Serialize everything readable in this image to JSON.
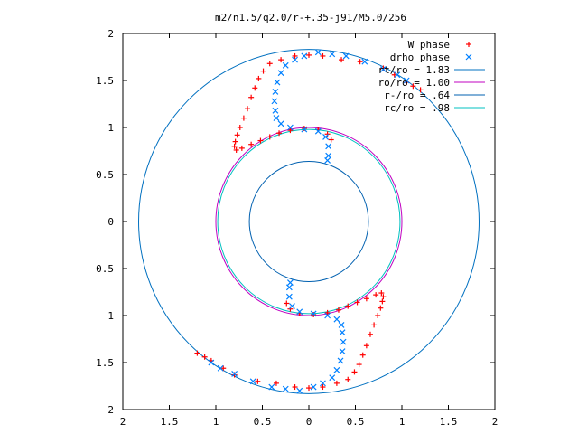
{
  "chart_data": {
    "type": "scatter",
    "title": "m2/n1.5/q2.0/r-+.35-j91/M5.0/256",
    "xlabel": "",
    "ylabel": "",
    "xlim": [
      -2,
      2
    ],
    "ylim": [
      -2,
      2
    ],
    "x_tick_values": [
      -2,
      -1.5,
      -1,
      -0.5,
      0,
      0.5,
      1,
      1.5,
      2
    ],
    "x_tick_labels": [
      "2",
      "1.5",
      "1",
      "0.5",
      "0",
      "0.5",
      "1",
      "1.5",
      "2"
    ],
    "y_tick_values": [
      2,
      1.5,
      1,
      0.5,
      0,
      -0.5,
      -1,
      -1.5,
      -2
    ],
    "y_tick_labels": [
      "2",
      "1.5",
      "1",
      "0.5",
      "0",
      "0.5",
      "1",
      "1.5",
      "2"
    ],
    "grid": false,
    "legend_position": "top-right",
    "series": [
      {
        "name": "W phase",
        "kind": "points",
        "marker": "plus",
        "color": "#ff0000",
        "points": [
          [
            -1.2,
            -1.4
          ],
          [
            -1.12,
            -1.44
          ],
          [
            -1.05,
            -1.48
          ],
          [
            -0.92,
            -1.56
          ],
          [
            -0.8,
            -1.63
          ],
          [
            -0.55,
            -1.7
          ],
          [
            -0.35,
            -1.72
          ],
          [
            -0.15,
            -1.76
          ],
          [
            0.0,
            -1.77
          ],
          [
            0.15,
            -1.76
          ],
          [
            0.3,
            -1.72
          ],
          [
            0.42,
            -1.68
          ],
          [
            0.49,
            -1.6
          ],
          [
            0.54,
            -1.52
          ],
          [
            0.58,
            -1.42
          ],
          [
            0.62,
            -1.32
          ],
          [
            0.66,
            -1.2
          ],
          [
            0.7,
            -1.1
          ],
          [
            0.74,
            -1.0
          ],
          [
            0.77,
            -0.92
          ],
          [
            0.79,
            -0.85
          ],
          [
            0.8,
            -0.8
          ],
          [
            0.78,
            -0.76
          ],
          [
            0.72,
            -0.78
          ],
          [
            0.62,
            -0.82
          ],
          [
            0.52,
            -0.86
          ],
          [
            0.42,
            -0.9
          ],
          [
            0.32,
            -0.94
          ],
          [
            0.2,
            -0.97
          ],
          [
            0.05,
            -0.99
          ],
          [
            -0.1,
            -0.98
          ],
          [
            -0.2,
            -0.93
          ],
          [
            -0.24,
            -0.87
          ],
          [
            1.2,
            1.4
          ],
          [
            1.12,
            1.44
          ],
          [
            1.05,
            1.48
          ],
          [
            0.92,
            1.56
          ],
          [
            0.8,
            1.63
          ],
          [
            0.55,
            1.7
          ],
          [
            0.35,
            1.72
          ],
          [
            0.15,
            1.76
          ],
          [
            0.0,
            1.77
          ],
          [
            -0.15,
            1.76
          ],
          [
            -0.3,
            1.72
          ],
          [
            -0.42,
            1.68
          ],
          [
            -0.49,
            1.6
          ],
          [
            -0.54,
            1.52
          ],
          [
            -0.58,
            1.42
          ],
          [
            -0.62,
            1.32
          ],
          [
            -0.66,
            1.2
          ],
          [
            -0.7,
            1.1
          ],
          [
            -0.74,
            1.0
          ],
          [
            -0.77,
            0.92
          ],
          [
            -0.79,
            0.85
          ],
          [
            -0.8,
            0.8
          ],
          [
            -0.78,
            0.76
          ],
          [
            -0.72,
            0.78
          ],
          [
            -0.62,
            0.82
          ],
          [
            -0.52,
            0.86
          ],
          [
            -0.42,
            0.9
          ],
          [
            -0.32,
            0.94
          ],
          [
            -0.2,
            0.97
          ],
          [
            -0.05,
            0.99
          ],
          [
            0.1,
            0.98
          ],
          [
            0.2,
            0.93
          ],
          [
            0.24,
            0.87
          ]
        ]
      },
      {
        "name": "drho phase",
        "kind": "points",
        "marker": "cross",
        "color": "#0080ff",
        "points": [
          [
            -1.05,
            -1.5
          ],
          [
            -0.95,
            -1.56
          ],
          [
            -0.8,
            -1.62
          ],
          [
            -0.6,
            -1.7
          ],
          [
            -0.4,
            -1.76
          ],
          [
            -0.25,
            -1.78
          ],
          [
            -0.1,
            -1.8
          ],
          [
            0.05,
            -1.76
          ],
          [
            0.15,
            -1.72
          ],
          [
            0.25,
            -1.66
          ],
          [
            0.3,
            -1.58
          ],
          [
            0.34,
            -1.48
          ],
          [
            0.36,
            -1.38
          ],
          [
            0.37,
            -1.28
          ],
          [
            0.36,
            -1.18
          ],
          [
            0.35,
            -1.1
          ],
          [
            0.3,
            -1.04
          ],
          [
            0.2,
            -1.0
          ],
          [
            0.05,
            -0.98
          ],
          [
            -0.1,
            -0.96
          ],
          [
            -0.18,
            -0.9
          ],
          [
            -0.21,
            -0.8
          ],
          [
            -0.21,
            -0.7
          ],
          [
            -0.2,
            -0.65
          ],
          [
            1.05,
            1.5
          ],
          [
            0.95,
            1.56
          ],
          [
            0.8,
            1.62
          ],
          [
            0.6,
            1.7
          ],
          [
            0.4,
            1.76
          ],
          [
            0.25,
            1.78
          ],
          [
            0.1,
            1.8
          ],
          [
            -0.05,
            1.76
          ],
          [
            -0.15,
            1.72
          ],
          [
            -0.25,
            1.66
          ],
          [
            -0.3,
            1.58
          ],
          [
            -0.34,
            1.48
          ],
          [
            -0.36,
            1.38
          ],
          [
            -0.37,
            1.28
          ],
          [
            -0.36,
            1.18
          ],
          [
            -0.35,
            1.1
          ],
          [
            -0.3,
            1.04
          ],
          [
            -0.2,
            1.0
          ],
          [
            -0.05,
            0.98
          ],
          [
            0.1,
            0.96
          ],
          [
            0.18,
            0.9
          ],
          [
            0.21,
            0.8
          ],
          [
            0.21,
            0.7
          ],
          [
            0.2,
            0.65
          ]
        ]
      },
      {
        "name": "rt/ro = 1.83",
        "kind": "circle",
        "radius": 1.83,
        "color": "#0070c0"
      },
      {
        "name": "ro/ro = 1.00",
        "kind": "circle",
        "radius": 1.0,
        "color": "#c000c0"
      },
      {
        "name": "r-/ro = .64",
        "kind": "circle",
        "radius": 0.64,
        "color": "#0060b0"
      },
      {
        "name": "rc/ro = .98",
        "kind": "circle",
        "radius": 0.98,
        "color": "#00c0c0"
      }
    ]
  }
}
